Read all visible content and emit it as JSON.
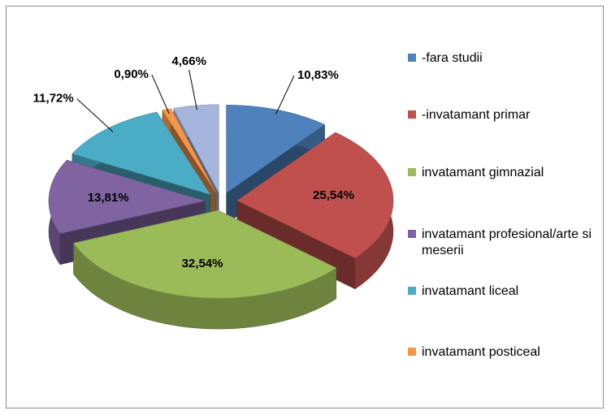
{
  "chart_data": {
    "type": "pie3d",
    "categories": [
      "-fara studii",
      "-invatamant primar",
      "invatamant gimnazial",
      "invatamant profesional/arte si meserii",
      "invatamant liceal",
      "invatamant posticeal",
      null
    ],
    "values": [
      10.83,
      25.54,
      32.54,
      13.81,
      11.72,
      0.9,
      4.66
    ],
    "value_labels": [
      "10,83%",
      "25,54%",
      "32,54%",
      "13,81%",
      "11,72%",
      "0,90%",
      "4,66%"
    ],
    "colors": [
      "#4f81bd",
      "#c0504d",
      "#9bbb59",
      "#8064a2",
      "#4bacc6",
      "#f79646",
      "#a5b5dc"
    ],
    "legend": "right"
  }
}
